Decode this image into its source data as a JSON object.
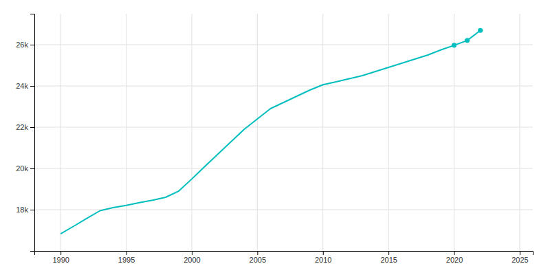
{
  "chart_data": {
    "type": "line",
    "x": [
      1990,
      1991,
      1992,
      1993,
      1994,
      1995,
      1996,
      1997,
      1998,
      1999,
      2000,
      2001,
      2002,
      2003,
      2004,
      2005,
      2006,
      2007,
      2008,
      2009,
      2010,
      2011,
      2012,
      2013,
      2014,
      2015,
      2016,
      2017,
      2018,
      2019,
      2020,
      2021,
      2022
    ],
    "series": [
      {
        "type": "line",
        "color": "#00BEBE",
        "values": [
          16829,
          17200,
          17580,
          17950,
          18100,
          18210,
          18340,
          18460,
          18600,
          18900,
          19488,
          20100,
          20700,
          21300,
          21900,
          22400,
          22900,
          23200,
          23500,
          23800,
          24060,
          24200,
          24350,
          24500,
          24700,
          24900,
          25100,
          25300,
          25500,
          25750,
          25972,
          26205,
          26690
        ]
      },
      {
        "type": "scatter",
        "color": "#00BEBE",
        "marker": "circle",
        "values": [
          null,
          null,
          null,
          null,
          null,
          null,
          null,
          null,
          null,
          null,
          null,
          null,
          null,
          null,
          null,
          null,
          null,
          null,
          null,
          null,
          null,
          null,
          null,
          null,
          null,
          null,
          null,
          null,
          null,
          null,
          25972,
          26205,
          26690
        ]
      }
    ],
    "xlim": [
      1988,
      2026
    ],
    "xticks": [
      1990,
      1995,
      2000,
      2005,
      2010,
      2015,
      2020,
      2025
    ],
    "ylim": [
      16000,
      27500
    ],
    "yticks": [
      {
        "value": 18000,
        "label": "18k"
      },
      {
        "value": 20000,
        "label": "20k"
      },
      {
        "value": 22000,
        "label": "22k"
      },
      {
        "value": 24000,
        "label": "24k"
      },
      {
        "value": 26000,
        "label": "26k"
      }
    ],
    "grid": true
  }
}
